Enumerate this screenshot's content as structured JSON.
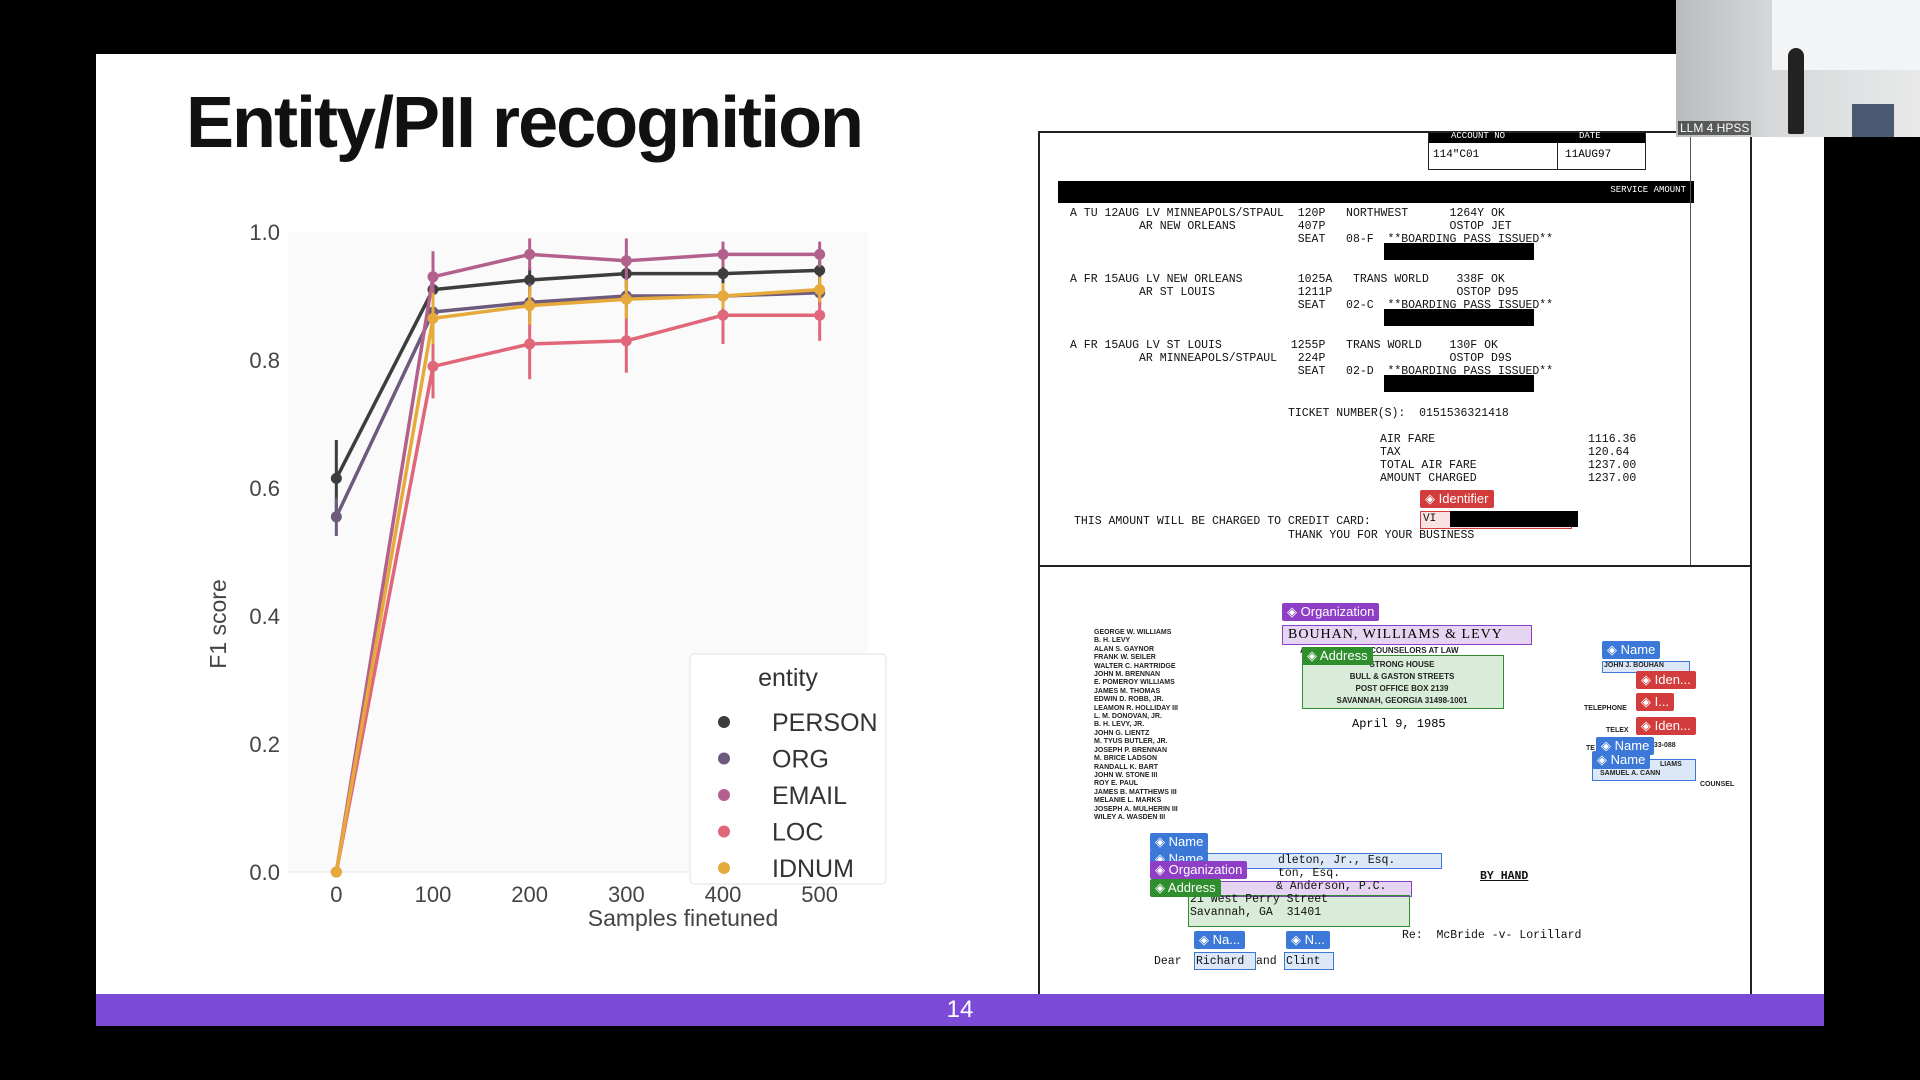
{
  "slide": {
    "title": "Entity/PII recognition",
    "page_number": "14",
    "footer_color": "#7b4ad6"
  },
  "webcam": {
    "label": "LLM 4 HPSS"
  },
  "chart_data": {
    "type": "line",
    "x": [
      0,
      100,
      200,
      300,
      400,
      500
    ],
    "xlabel": "Samples finetuned",
    "ylabel": "F1 score",
    "xticks": [
      "0",
      "100",
      "200",
      "300",
      "400",
      "500"
    ],
    "yticks": [
      "0.0",
      "0.2",
      "0.4",
      "0.6",
      "0.8",
      "1.0"
    ],
    "ylim": [
      0.0,
      1.0
    ],
    "xlim": [
      -50,
      550
    ],
    "legend_title": "entity",
    "legend_position": "lower-right",
    "series": [
      {
        "name": "PERSON",
        "color": "#3d3d3d",
        "values": [
          0.615,
          0.91,
          0.925,
          0.935,
          0.935,
          0.94
        ],
        "err": [
          0.06,
          0.02,
          0.02,
          0.02,
          0.015,
          0.015
        ]
      },
      {
        "name": "ORG",
        "color": "#6e5a7d",
        "values": [
          0.555,
          0.875,
          0.89,
          0.9,
          0.9,
          0.905
        ],
        "err": [
          0.03,
          0.03,
          0.03,
          0.02,
          0.02,
          0.02
        ]
      },
      {
        "name": "EMAIL",
        "color": "#b2618d",
        "values": [
          0.0,
          0.93,
          0.965,
          0.955,
          0.965,
          0.965
        ],
        "err": [
          0.0,
          0.04,
          0.025,
          0.035,
          0.02,
          0.02
        ]
      },
      {
        "name": "LOC",
        "color": "#e0677a",
        "values": [
          0.0,
          0.79,
          0.825,
          0.83,
          0.87,
          0.87
        ],
        "err": [
          0.0,
          0.05,
          0.055,
          0.05,
          0.045,
          0.04
        ]
      },
      {
        "name": "IDNUM",
        "color": "#e6aa3a",
        "values": [
          0.0,
          0.865,
          0.885,
          0.895,
          0.9,
          0.91
        ],
        "err": [
          0.0,
          0.04,
          0.03,
          0.03,
          0.02,
          0.02
        ]
      }
    ]
  },
  "receipt": {
    "header": {
      "account_no_label": "ACCOUNT NO",
      "date_label": "DATE",
      "account_no": "114\"C01",
      "date": "11AUG97",
      "service_amount_label": "SERVICE AMOUNT"
    },
    "lines": [
      "A TU 12AUG LV MINNEAPOLS/STPAUL  120P   NORTHWEST      1264Y OK",
      "          AR NEW ORLEANS         407P                  OSTOP JET",
      "                                 SEAT   08-F  **BOARDING PASS ISSUED**",
      "A FR 15AUG LV NEW ORLEANS        1025A   TRANS WORLD    338F OK",
      "          AR ST LOUIS            1211P                  OSTOP D95",
      "                                 SEAT   02-C  **BOARDING PASS ISSUED**",
      "A FR 15AUG LV ST LOUIS          1255P   TRANS WORLD    130F OK",
      "          AR MINNEAPOLS/STPAUL   224P                  OSTOP D9S",
      "                                 SEAT   02-D  **BOARDING PASS ISSUED**"
    ],
    "ticket_number": "TICKET NUMBER(S):  0151536321418",
    "fare_labels": [
      "AIR FARE",
      "TAX",
      "TOTAL AIR FARE",
      "AMOUNT CHARGED"
    ],
    "fare_values": [
      "1116.36",
      "120.64",
      "1237.00",
      "1237.00"
    ],
    "credit_line": "THIS AMOUNT WILL BE CHARGED TO CREDIT CARD:",
    "card_prefix": "VI",
    "thanks": "THANK YOU FOR YOUR BUSINESS",
    "tag_identifier": "Identifier"
  },
  "letter": {
    "firm_name": "BOUHAN, WILLIAMS & LEVY",
    "firm_subtitle": "ATTORNEYS AND COUNSELORS AT LAW",
    "address_lines": [
      "STRONG HOUSE",
      "BULL & GASTON STREETS",
      "POST OFFICE BOX 2139",
      "SAVANNAH, GEORGIA 31498-1001"
    ],
    "date": "April 9, 1985",
    "partners": [
      "GEORGE W. WILLIAMS",
      "B. H. LEVY",
      "ALAN S. GAYNOR",
      "FRANK W. SEILER",
      "WALTER C. HARTRIDGE",
      "JOHN M. BRENNAN",
      "E. POMEROY WILLIAMS",
      "JAMES M. THOMAS",
      "EDWIN D. ROBB, JR.",
      "LEAMON R. HOLLIDAY III",
      "L. M. DONOVAN, JR.",
      "B. H. LEVY, JR.",
      "JOHN G. LIENTZ",
      "M. TYUS BUTLER, JR.",
      "JOSEPH P. BRENNAN",
      "M. BRICE LADSON",
      "RANDALL K. BART",
      "JOHN W. STONE III",
      "ROY E. PAUL",
      "JAMES B. MATTHEWS III",
      "MELANIE L. MARKS",
      "JOSEPH A. MULHERIN III",
      "WILEY A. WASDEN III"
    ],
    "right_labels": [
      "JOHN J. BOUHAN",
      "TELEPHONE",
      "TELEX",
      "TE",
      "LIAMS",
      "SAMUEL A. CANN",
      "COUNSEL",
      "233-088"
    ],
    "recipient_lines": [
      "dleton, Jr., Esq.",
      "ton, Esq.",
      "& Anderson, P.C.",
      "21 West Perry Street",
      "Savannah, GA  31401"
    ],
    "by_hand": "BY HAND",
    "re_line": "Re:  McBride -v- Lorillard",
    "dear": "Dear",
    "dear_name_1": "Richard",
    "and": "and",
    "dear_name_2": "Clint",
    "tags": {
      "organization": "Organization",
      "address": "Address",
      "name": "Name",
      "iden": "Iden...",
      "i_short": "I...",
      "na_short": "Na...",
      "n_short": "N..."
    }
  }
}
